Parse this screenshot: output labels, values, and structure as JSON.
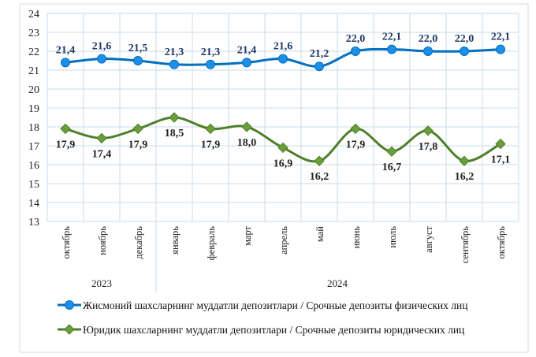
{
  "chart_data": {
    "type": "line",
    "categories": [
      "октябрь",
      "ноябрь",
      "декабрь",
      "январь",
      "февраль",
      "март",
      "апрель",
      "май",
      "июнь",
      "июль",
      "август",
      "сентябрь",
      "октябрь"
    ],
    "groups": [
      {
        "label": "2023",
        "count": 3
      },
      {
        "label": "2024",
        "count": 10
      }
    ],
    "series": [
      {
        "name": "Жисмоний шахсларнинг  муддатли  депозитлари / Срочные депозиты физических лиц",
        "values": [
          21.4,
          21.6,
          21.5,
          21.3,
          21.3,
          21.4,
          21.6,
          21.2,
          22.0,
          22.1,
          22.0,
          22.0,
          22.1
        ],
        "labels": [
          "21,4",
          "21,6",
          "21,5",
          "21,3",
          "21,3",
          "21,4",
          "21,6",
          "21,2",
          "22,0",
          "22,1",
          "22,0",
          "22,0",
          "22,1"
        ],
        "color": "#0070C0",
        "marker_color": "#1E8FE8",
        "marker": "circle",
        "label_position": "above"
      },
      {
        "name": "Юридик шахсларнинг  муддатли  депозитлари / Срочные депозиты юридических лиц",
        "values": [
          17.9,
          17.4,
          17.9,
          18.5,
          17.9,
          18.0,
          16.9,
          16.2,
          17.9,
          16.7,
          17.8,
          16.2,
          17.1
        ],
        "labels": [
          "17,9",
          "17,4",
          "17,9",
          "18,5",
          "17,9",
          "18,0",
          "16,9",
          "16,2",
          "17,9",
          "16,7",
          "17,8",
          "16,2",
          "17,1"
        ],
        "color": "#4E7F2A",
        "marker_color": "#6A9E3A",
        "marker": "diamond",
        "label_position": "below"
      }
    ],
    "ylim": [
      13,
      24
    ],
    "yticks": [
      13,
      14,
      15,
      16,
      17,
      18,
      19,
      20,
      21,
      22,
      23,
      24
    ],
    "grid": true,
    "legend": "bottom"
  }
}
